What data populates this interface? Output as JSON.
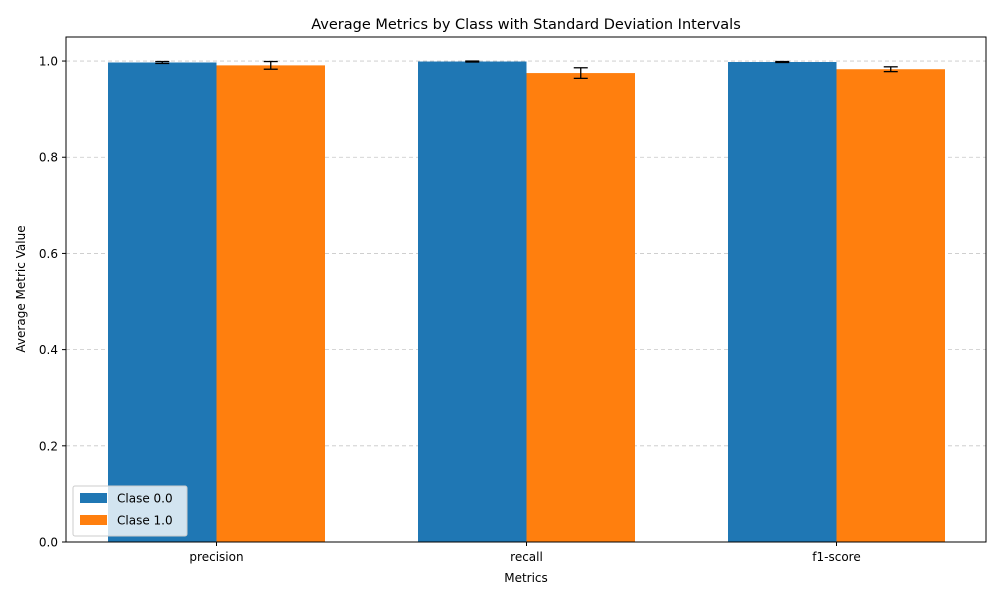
{
  "chart_data": {
    "type": "bar",
    "title": "Average Metrics by Class with Standard Deviation Intervals",
    "xlabel": "Metrics",
    "ylabel": "Average Metric Value",
    "categories": [
      "precision",
      "recall",
      "f1-score"
    ],
    "ylim": [
      0,
      1.05
    ],
    "yticks": [
      0.0,
      0.2,
      0.4,
      0.6,
      0.8,
      1.0
    ],
    "ytick_labels": [
      "0.0",
      "0.2",
      "0.4",
      "0.6",
      "0.8",
      "1.0"
    ],
    "grid": "y, dashed",
    "legend_position": "lower-left",
    "series": [
      {
        "name": "Clase 0.0",
        "color": "#1f77b4",
        "values": [
          0.997,
          0.999,
          0.998
        ],
        "std": [
          0.002,
          0.001,
          0.001
        ]
      },
      {
        "name": "Clase 1.0",
        "color": "#ff7f0e",
        "values": [
          0.991,
          0.975,
          0.983
        ],
        "std": [
          0.008,
          0.011,
          0.005
        ]
      }
    ]
  }
}
